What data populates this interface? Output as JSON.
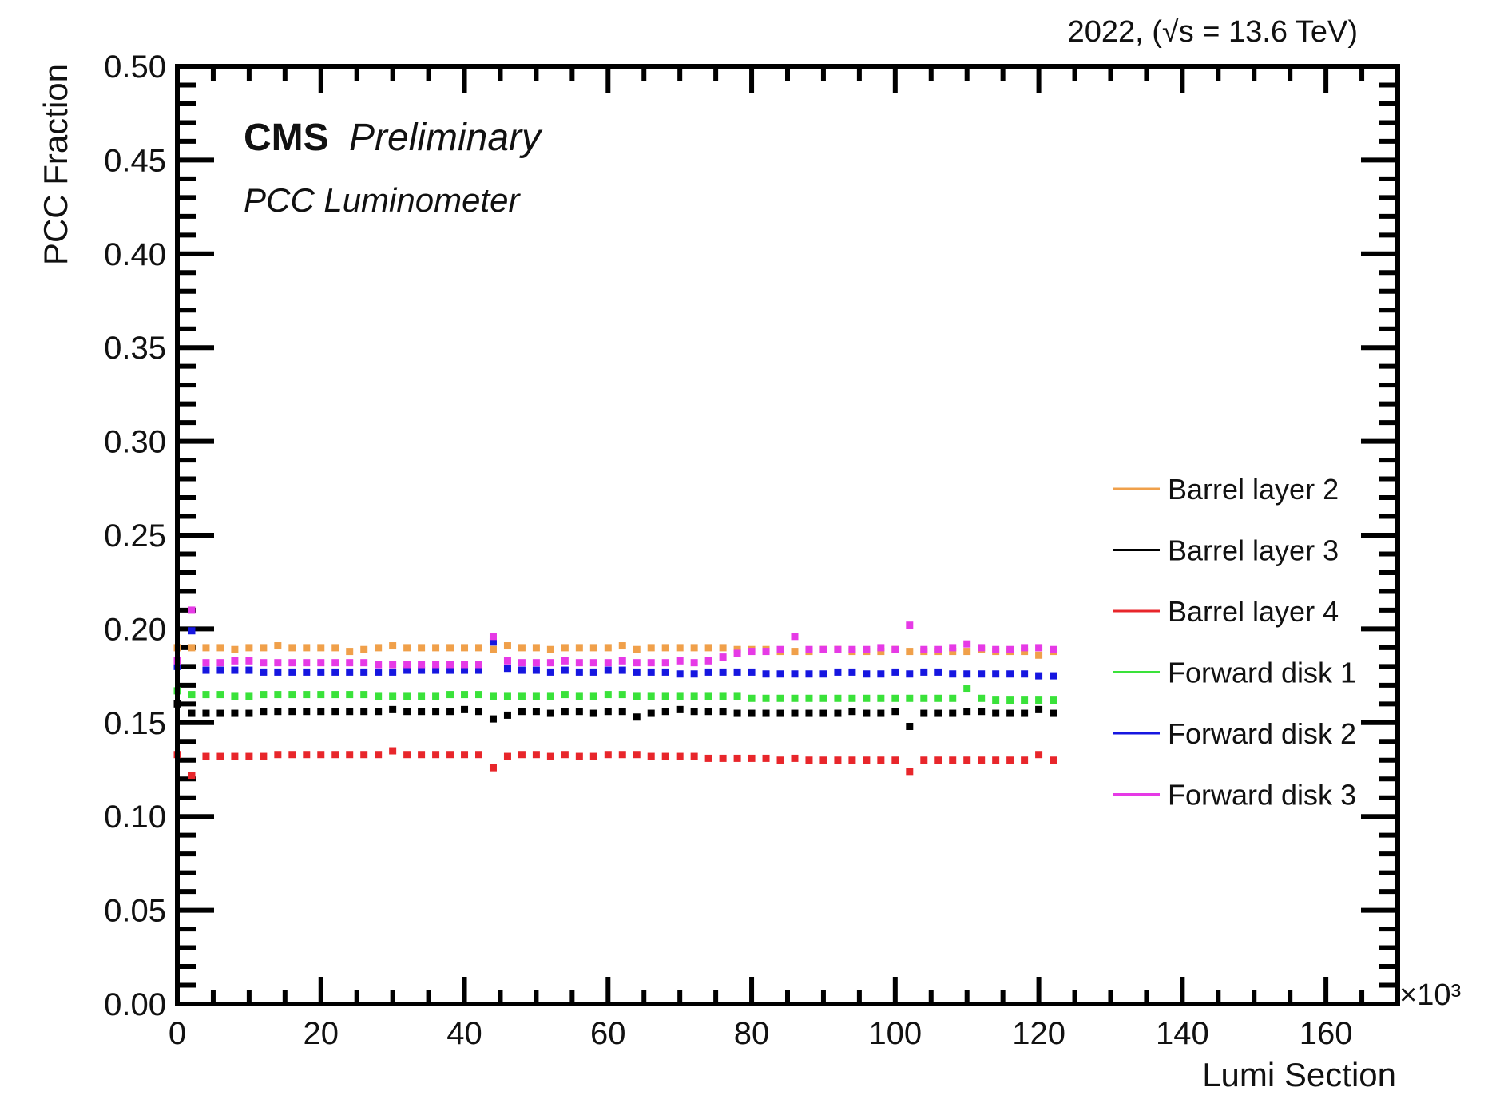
{
  "header": {
    "energy_label": "2022, (√s = 13.6 TeV)"
  },
  "annotations": {
    "cms": "CMS",
    "preliminary": "Preliminary",
    "subtitle": "PCC Luminometer",
    "x_multiplier": "×10³"
  },
  "chart_data": {
    "type": "scatter",
    "title": "",
    "xlabel": "Lumi Section",
    "ylabel": "PCC Fraction",
    "xlim": [
      0,
      170000
    ],
    "ylim": [
      0,
      0.5
    ],
    "x_ticks": [
      0,
      20000,
      40000,
      60000,
      80000,
      100000,
      120000,
      140000,
      160000
    ],
    "x_tick_labels": [
      "0",
      "20",
      "40",
      "60",
      "80",
      "100",
      "120",
      "140",
      "160"
    ],
    "y_ticks": [
      0,
      0.05,
      0.1,
      0.15,
      0.2,
      0.25,
      0.3,
      0.35,
      0.4,
      0.45,
      0.5
    ],
    "y_tick_labels": [
      "0.00",
      "0.05",
      "0.10",
      "0.15",
      "0.20",
      "0.25",
      "0.30",
      "0.35",
      "0.40",
      "0.45",
      "0.50"
    ],
    "grid": false,
    "legend_position": "right",
    "x": [
      0,
      2000,
      4000,
      6000,
      8000,
      10000,
      12000,
      14000,
      16000,
      18000,
      20000,
      22000,
      24000,
      26000,
      28000,
      30000,
      32000,
      34000,
      36000,
      38000,
      40000,
      42000,
      44000,
      46000,
      48000,
      50000,
      52000,
      54000,
      56000,
      58000,
      60000,
      62000,
      64000,
      66000,
      68000,
      70000,
      72000,
      74000,
      76000,
      78000,
      80000,
      82000,
      84000,
      86000,
      88000,
      90000,
      92000,
      94000,
      96000,
      98000,
      100000,
      102000,
      104000,
      106000,
      108000,
      110000,
      112000,
      114000,
      116000,
      118000,
      120000,
      122000
    ],
    "series": [
      {
        "name": "Barrel layer 2",
        "color": "#f0a04a",
        "values": [
          0.19,
          0.19,
          0.19,
          0.19,
          0.189,
          0.19,
          0.19,
          0.191,
          0.19,
          0.19,
          0.19,
          0.19,
          0.188,
          0.189,
          0.19,
          0.191,
          0.19,
          0.19,
          0.19,
          0.19,
          0.19,
          0.19,
          0.189,
          0.191,
          0.19,
          0.19,
          0.189,
          0.19,
          0.19,
          0.19,
          0.19,
          0.191,
          0.189,
          0.19,
          0.19,
          0.19,
          0.19,
          0.19,
          0.19,
          0.189,
          0.189,
          0.189,
          0.188,
          0.188,
          0.188,
          0.189,
          0.189,
          0.188,
          0.188,
          0.188,
          0.189,
          0.188,
          0.188,
          0.188,
          0.188,
          0.188,
          0.189,
          0.188,
          0.188,
          0.188,
          0.186,
          0.188
        ]
      },
      {
        "name": "Barrel layer 3",
        "color": "#000000",
        "values": [
          0.16,
          0.155,
          0.155,
          0.155,
          0.155,
          0.155,
          0.156,
          0.156,
          0.156,
          0.156,
          0.156,
          0.156,
          0.156,
          0.156,
          0.156,
          0.157,
          0.156,
          0.156,
          0.156,
          0.156,
          0.157,
          0.156,
          0.152,
          0.154,
          0.156,
          0.156,
          0.155,
          0.156,
          0.156,
          0.155,
          0.156,
          0.156,
          0.153,
          0.155,
          0.156,
          0.157,
          0.156,
          0.156,
          0.156,
          0.155,
          0.155,
          0.155,
          0.155,
          0.155,
          0.155,
          0.155,
          0.155,
          0.156,
          0.155,
          0.155,
          0.156,
          0.148,
          0.155,
          0.155,
          0.155,
          0.156,
          0.156,
          0.155,
          0.155,
          0.155,
          0.157,
          0.155
        ]
      },
      {
        "name": "Barrel layer 4",
        "color": "#e8262b",
        "values": [
          0.133,
          0.122,
          0.132,
          0.132,
          0.132,
          0.132,
          0.132,
          0.133,
          0.133,
          0.133,
          0.133,
          0.133,
          0.133,
          0.133,
          0.133,
          0.135,
          0.133,
          0.133,
          0.133,
          0.133,
          0.133,
          0.133,
          0.126,
          0.132,
          0.133,
          0.133,
          0.132,
          0.133,
          0.132,
          0.132,
          0.133,
          0.133,
          0.133,
          0.132,
          0.132,
          0.132,
          0.132,
          0.131,
          0.131,
          0.131,
          0.131,
          0.131,
          0.13,
          0.131,
          0.13,
          0.13,
          0.13,
          0.13,
          0.13,
          0.13,
          0.13,
          0.124,
          0.13,
          0.13,
          0.13,
          0.13,
          0.13,
          0.13,
          0.13,
          0.13,
          0.133,
          0.13
        ]
      },
      {
        "name": "Forward disk 1",
        "color": "#3ae23a",
        "values": [
          0.167,
          0.165,
          0.165,
          0.165,
          0.164,
          0.164,
          0.165,
          0.165,
          0.165,
          0.165,
          0.165,
          0.165,
          0.165,
          0.165,
          0.164,
          0.164,
          0.164,
          0.164,
          0.164,
          0.165,
          0.165,
          0.165,
          0.164,
          0.164,
          0.164,
          0.164,
          0.164,
          0.165,
          0.164,
          0.164,
          0.165,
          0.165,
          0.164,
          0.164,
          0.164,
          0.164,
          0.164,
          0.164,
          0.164,
          0.164,
          0.163,
          0.163,
          0.163,
          0.163,
          0.163,
          0.163,
          0.163,
          0.163,
          0.163,
          0.163,
          0.163,
          0.163,
          0.163,
          0.163,
          0.163,
          0.168,
          0.163,
          0.162,
          0.162,
          0.162,
          0.162,
          0.162
        ]
      },
      {
        "name": "Forward disk 2",
        "color": "#1616e0",
        "values": [
          0.18,
          0.199,
          0.178,
          0.178,
          0.178,
          0.178,
          0.177,
          0.177,
          0.177,
          0.177,
          0.177,
          0.177,
          0.177,
          0.177,
          0.177,
          0.177,
          0.178,
          0.178,
          0.178,
          0.178,
          0.178,
          0.178,
          0.193,
          0.179,
          0.178,
          0.178,
          0.177,
          0.178,
          0.177,
          0.177,
          0.178,
          0.178,
          0.177,
          0.177,
          0.177,
          0.176,
          0.176,
          0.177,
          0.177,
          0.177,
          0.177,
          0.176,
          0.176,
          0.176,
          0.176,
          0.176,
          0.177,
          0.177,
          0.176,
          0.176,
          0.177,
          0.176,
          0.177,
          0.177,
          0.176,
          0.176,
          0.176,
          0.176,
          0.176,
          0.176,
          0.175,
          0.175
        ]
      },
      {
        "name": "Forward disk 3",
        "color": "#e63ae6",
        "values": [
          0.183,
          0.21,
          0.182,
          0.182,
          0.183,
          0.183,
          0.182,
          0.182,
          0.182,
          0.182,
          0.182,
          0.182,
          0.182,
          0.182,
          0.181,
          0.181,
          0.181,
          0.181,
          0.181,
          0.181,
          0.181,
          0.181,
          0.196,
          0.183,
          0.182,
          0.182,
          0.182,
          0.183,
          0.182,
          0.182,
          0.182,
          0.183,
          0.182,
          0.182,
          0.182,
          0.183,
          0.182,
          0.183,
          0.185,
          0.187,
          0.188,
          0.188,
          0.189,
          0.196,
          0.189,
          0.189,
          0.189,
          0.189,
          0.189,
          0.19,
          0.189,
          0.202,
          0.189,
          0.189,
          0.19,
          0.192,
          0.19,
          0.189,
          0.189,
          0.19,
          0.19,
          0.189
        ]
      }
    ]
  }
}
